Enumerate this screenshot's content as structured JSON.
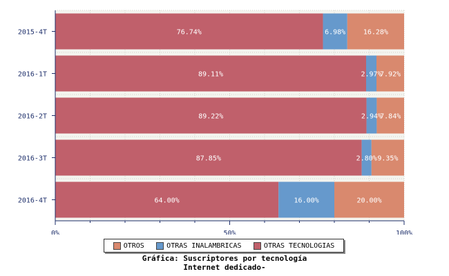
{
  "chart_data": {
    "type": "bar",
    "orientation": "horizontal",
    "stacked": true,
    "categories": [
      "2015-4T",
      "2016-1T",
      "2016-2T",
      "2016-3T",
      "2016-4T"
    ],
    "series": [
      {
        "name": "OTRAS TECNOLOGIAS",
        "color": "#c0606b",
        "values": [
          76.74,
          89.11,
          89.22,
          87.85,
          64.0
        ],
        "labels": [
          "76.74%",
          "89.11%",
          "89.22%",
          "87.85%",
          "64.00%"
        ]
      },
      {
        "name": "OTRAS INALAMBRICAS",
        "color": "#6699cc",
        "values": [
          6.98,
          2.97,
          2.94,
          2.8,
          16.0
        ],
        "labels": [
          "6.98%",
          "2.97%",
          "2.94%",
          "2.80%",
          "16.00%"
        ]
      },
      {
        "name": "OTROS",
        "color": "#d9896e",
        "values": [
          16.28,
          7.92,
          7.84,
          9.35,
          20.0
        ],
        "labels": [
          "16.28%",
          "7.92%",
          "7.84%",
          "9.35%",
          "20.00%"
        ]
      }
    ],
    "xlim": [
      0,
      100
    ],
    "xticks": [
      "0%",
      "50%",
      "100%"
    ],
    "legend_position": "bottom"
  },
  "legend": [
    {
      "label": "OTROS",
      "color": "#d9896e"
    },
    {
      "label": "OTRAS INALAMBRICAS",
      "color": "#6699cc"
    },
    {
      "label": "OTRAS TECNOLOGIAS",
      "color": "#c0606b"
    }
  ],
  "caption": {
    "line1": "Gráfica: Suscriptores por tecnología",
    "line2": "Internet dedicado-"
  }
}
